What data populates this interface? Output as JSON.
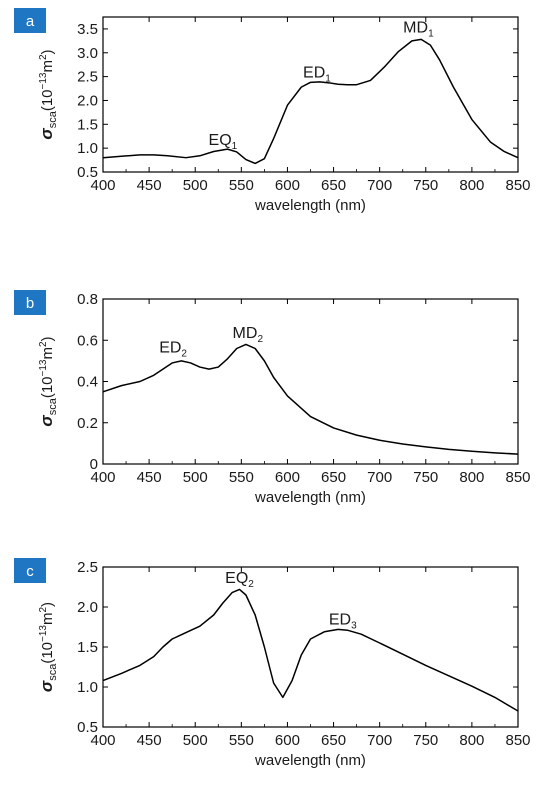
{
  "chart_data": [
    {
      "type": "line",
      "panel_label": "a",
      "xlabel": "wavelength (nm)",
      "ylabel": {
        "symbol": "σ",
        "subscript": "sca",
        "unit": "(10",
        "exponent": "−13",
        "unit_tail": "m",
        "unit_exp": "2",
        "close": ")"
      },
      "xlim": [
        400,
        850
      ],
      "ylim": [
        0.5,
        3.75
      ],
      "xticks": [
        400,
        450,
        500,
        550,
        600,
        650,
        700,
        750,
        800,
        850
      ],
      "yticks": [
        {
          "value": 0.5,
          "label": "0.5"
        },
        {
          "value": 1.0,
          "label": "1.0"
        },
        {
          "value": 1.5,
          "label": "1.5"
        },
        {
          "value": 2.0,
          "label": "2.0"
        },
        {
          "value": 2.5,
          "label": "2.5"
        },
        {
          "value": 3.0,
          "label": "3.0"
        },
        {
          "value": 3.5,
          "label": "3.5"
        }
      ],
      "grid": false,
      "series": [
        {
          "color": "#000000",
          "x": [
            400,
            420,
            440,
            455,
            470,
            490,
            505,
            520,
            535,
            545,
            555,
            565,
            575,
            585,
            600,
            615,
            625,
            635,
            645,
            655,
            665,
            675,
            690,
            705,
            720,
            735,
            745,
            755,
            765,
            780,
            800,
            820,
            835,
            850
          ],
          "y": [
            0.8,
            0.83,
            0.86,
            0.86,
            0.84,
            0.8,
            0.84,
            0.93,
            0.98,
            0.92,
            0.76,
            0.68,
            0.78,
            1.2,
            1.9,
            2.28,
            2.38,
            2.39,
            2.37,
            2.34,
            2.33,
            2.33,
            2.42,
            2.7,
            3.02,
            3.25,
            3.28,
            3.16,
            2.85,
            2.28,
            1.6,
            1.13,
            0.93,
            0.8
          ]
        }
      ],
      "annotations": [
        {
          "base": "EQ",
          "sub": "1",
          "x": 530,
          "y": 1.07
        },
        {
          "base": "ED",
          "sub": "1",
          "x": 632,
          "y": 2.48
        },
        {
          "base": "MD",
          "sub": "1",
          "x": 742,
          "y": 3.42
        }
      ]
    },
    {
      "type": "line",
      "panel_label": "b",
      "xlabel": "wavelength (nm)",
      "ylabel": {
        "symbol": "σ",
        "subscript": "sca",
        "unit": "(10",
        "exponent": "−13",
        "unit_tail": "m",
        "unit_exp": "2",
        "close": ")"
      },
      "xlim": [
        400,
        850
      ],
      "ylim": [
        0,
        0.8
      ],
      "xticks": [
        400,
        450,
        500,
        550,
        600,
        650,
        700,
        750,
        800,
        850
      ],
      "yticks": [
        {
          "value": 0,
          "label": "0"
        },
        {
          "value": 0.2,
          "label": "0.2"
        },
        {
          "value": 0.4,
          "label": "0.4"
        },
        {
          "value": 0.6,
          "label": "0.6"
        },
        {
          "value": 0.8,
          "label": "0.8"
        }
      ],
      "grid": false,
      "series": [
        {
          "color": "#000000",
          "x": [
            400,
            420,
            440,
            455,
            465,
            475,
            485,
            495,
            505,
            515,
            525,
            535,
            545,
            555,
            565,
            575,
            585,
            600,
            625,
            650,
            675,
            700,
            725,
            750,
            775,
            800,
            825,
            850
          ],
          "y": [
            0.35,
            0.38,
            0.4,
            0.43,
            0.46,
            0.49,
            0.5,
            0.49,
            0.47,
            0.46,
            0.47,
            0.51,
            0.56,
            0.58,
            0.56,
            0.5,
            0.42,
            0.33,
            0.23,
            0.175,
            0.14,
            0.115,
            0.097,
            0.083,
            0.071,
            0.062,
            0.054,
            0.048
          ]
        }
      ],
      "annotations": [
        {
          "base": "ED",
          "sub": "2",
          "x": 476,
          "y": 0.54
        },
        {
          "base": "MD",
          "sub": "2",
          "x": 557,
          "y": 0.61
        }
      ]
    },
    {
      "type": "line",
      "panel_label": "c",
      "xlabel": "wavelength (nm)",
      "ylabel": {
        "symbol": "σ",
        "subscript": "sca",
        "unit": "(10",
        "exponent": "−13",
        "unit_tail": "m",
        "unit_exp": "2",
        "close": ")"
      },
      "xlim": [
        400,
        850
      ],
      "ylim": [
        0.5,
        2.5
      ],
      "xticks": [
        400,
        450,
        500,
        550,
        600,
        650,
        700,
        750,
        800,
        850
      ],
      "yticks": [
        {
          "value": 0.5,
          "label": "0.5"
        },
        {
          "value": 1.0,
          "label": "1.0"
        },
        {
          "value": 1.5,
          "label": "1.5"
        },
        {
          "value": 2.0,
          "label": "2.0"
        },
        {
          "value": 2.5,
          "label": "2.5"
        }
      ],
      "grid": false,
      "series": [
        {
          "color": "#000000",
          "x": [
            400,
            420,
            440,
            455,
            465,
            475,
            490,
            505,
            520,
            530,
            540,
            548,
            555,
            565,
            575,
            585,
            595,
            605,
            615,
            625,
            640,
            655,
            665,
            680,
            700,
            725,
            750,
            775,
            800,
            825,
            850
          ],
          "y": [
            1.08,
            1.17,
            1.27,
            1.38,
            1.5,
            1.6,
            1.68,
            1.76,
            1.9,
            2.05,
            2.18,
            2.22,
            2.15,
            1.9,
            1.5,
            1.05,
            0.87,
            1.08,
            1.4,
            1.6,
            1.69,
            1.72,
            1.71,
            1.66,
            1.55,
            1.41,
            1.27,
            1.14,
            1.01,
            0.87,
            0.7
          ]
        }
      ],
      "annotations": [
        {
          "base": "EQ",
          "sub": "2",
          "x": 548,
          "y": 2.3
        },
        {
          "base": "ED",
          "sub": "3",
          "x": 660,
          "y": 1.78
        }
      ]
    }
  ]
}
